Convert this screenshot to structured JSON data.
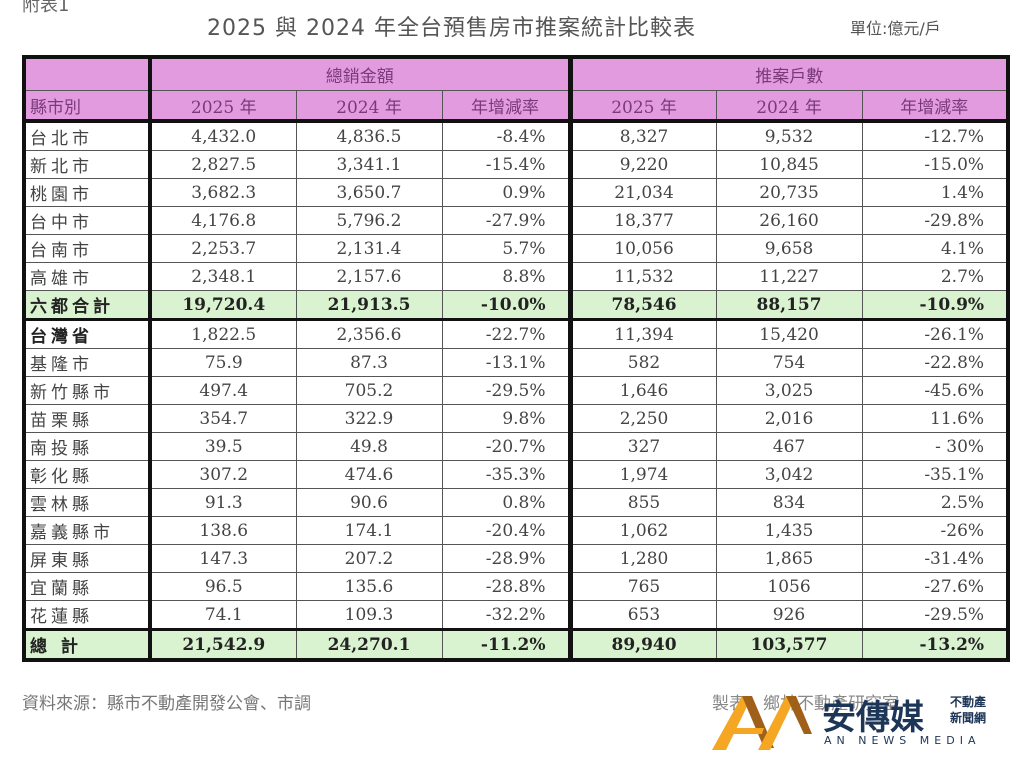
{
  "header": {
    "corner_label": "附表1",
    "title": "2025 與 2024 年全台預售房市推案統計比較表",
    "unit": "單位:億元/戶"
  },
  "table": {
    "group_headers": {
      "sales": "總銷金額",
      "units": "推案戶數"
    },
    "columns": {
      "region": "縣市別",
      "sales_2025": "2025 年",
      "sales_2024": "2024 年",
      "sales_rate": "年增減率",
      "units_2025": "2025 年",
      "units_2024": "2024 年",
      "units_rate": "年增減率"
    },
    "rows": [
      {
        "region": "台北市",
        "sales_2025": "4,432.0",
        "sales_2024": "4,836.5",
        "sales_rate": "-8.4%",
        "units_2025": "8,327",
        "units_2024": "9,532",
        "units_rate": "-12.7%"
      },
      {
        "region": "新北市",
        "sales_2025": "2,827.5",
        "sales_2024": "3,341.1",
        "sales_rate": "-15.4%",
        "units_2025": "9,220",
        "units_2024": "10,845",
        "units_rate": "-15.0%"
      },
      {
        "region": "桃園市",
        "sales_2025": "3,682.3",
        "sales_2024": "3,650.7",
        "sales_rate": "0.9%",
        "units_2025": "21,034",
        "units_2024": "20,735",
        "units_rate": "1.4%"
      },
      {
        "region": "台中市",
        "sales_2025": "4,176.8",
        "sales_2024": "5,796.2",
        "sales_rate": "-27.9%",
        "units_2025": "18,377",
        "units_2024": "26,160",
        "units_rate": "-29.8%"
      },
      {
        "region": "台南市",
        "sales_2025": "2,253.7",
        "sales_2024": "2,131.4",
        "sales_rate": "5.7%",
        "units_2025": "10,056",
        "units_2024": "9,658",
        "units_rate": "4.1%"
      },
      {
        "region": "高雄市",
        "sales_2025": "2,348.1",
        "sales_2024": "2,157.6",
        "sales_rate": "8.8%",
        "units_2025": "11,532",
        "units_2024": "11,227",
        "units_rate": "2.7%"
      },
      {
        "region": "六都合計",
        "sales_2025": "19,720.4",
        "sales_2024": "21,913.5",
        "sales_rate": "-10.0%",
        "units_2025": "78,546",
        "units_2024": "88,157",
        "units_rate": "-10.9%"
      },
      {
        "region": "台灣省",
        "sales_2025": "1,822.5",
        "sales_2024": "2,356.6",
        "sales_rate": "-22.7%",
        "units_2025": "11,394",
        "units_2024": "15,420",
        "units_rate": "-26.1%"
      },
      {
        "region": "基隆市",
        "sales_2025": "75.9",
        "sales_2024": "87.3",
        "sales_rate": "-13.1%",
        "units_2025": "582",
        "units_2024": "754",
        "units_rate": "-22.8%"
      },
      {
        "region": "新竹縣市",
        "sales_2025": "497.4",
        "sales_2024": "705.2",
        "sales_rate": "-29.5%",
        "units_2025": "1,646",
        "units_2024": "3,025",
        "units_rate": "-45.6%"
      },
      {
        "region": "苗栗縣",
        "sales_2025": "354.7",
        "sales_2024": "322.9",
        "sales_rate": "9.8%",
        "units_2025": "2,250",
        "units_2024": "2,016",
        "units_rate": "11.6%"
      },
      {
        "region": "南投縣",
        "sales_2025": "39.5",
        "sales_2024": "49.8",
        "sales_rate": "-20.7%",
        "units_2025": "327",
        "units_2024": "467",
        "units_rate": "- 30%"
      },
      {
        "region": "彰化縣",
        "sales_2025": "307.2",
        "sales_2024": "474.6",
        "sales_rate": "-35.3%",
        "units_2025": "1,974",
        "units_2024": "3,042",
        "units_rate": "-35.1%"
      },
      {
        "region": "雲林縣",
        "sales_2025": "91.3",
        "sales_2024": "90.6",
        "sales_rate": "0.8%",
        "units_2025": "855",
        "units_2024": "834",
        "units_rate": "2.5%"
      },
      {
        "region": "嘉義縣市",
        "sales_2025": "138.6",
        "sales_2024": "174.1",
        "sales_rate": "-20.4%",
        "units_2025": "1,062",
        "units_2024": "1,435",
        "units_rate": "-26%"
      },
      {
        "region": "屏東縣",
        "sales_2025": "147.3",
        "sales_2024": "207.2",
        "sales_rate": "-28.9%",
        "units_2025": "1,280",
        "units_2024": "1,865",
        "units_rate": "-31.4%"
      },
      {
        "region": "宜蘭縣",
        "sales_2025": "96.5",
        "sales_2024": "135.6",
        "sales_rate": "-28.8%",
        "units_2025": "765",
        "units_2024": "1056",
        "units_rate": "-27.6%"
      },
      {
        "region": "花蓮縣",
        "sales_2025": "74.1",
        "sales_2024": "109.3",
        "sales_rate": "-32.2%",
        "units_2025": "653",
        "units_2024": "926",
        "units_rate": "-29.5%"
      },
      {
        "region": "總 計",
        "sales_2025": "21,542.9",
        "sales_2024": "24,270.1",
        "sales_rate": "-11.2%",
        "units_2025": "89,940",
        "units_2024": "103,577",
        "units_rate": "-13.2%"
      }
    ]
  },
  "footer": {
    "source": "資料來源：縣市不動產開發公會、市調",
    "maker": "製表：鄉林不動產研究室"
  },
  "logo": {
    "name_cn": "安傳媒",
    "side_line1": "不動產",
    "side_line2": "新聞網",
    "name_en": "AN NEWS MEDIA",
    "colors": {
      "gold": "#f5a623",
      "brown": "#a0601a",
      "navy": "#1d3557"
    }
  },
  "colors": {
    "header_bg": "#e39be0",
    "subtotal_bg": "#d9f2cf",
    "border": "#111111"
  }
}
